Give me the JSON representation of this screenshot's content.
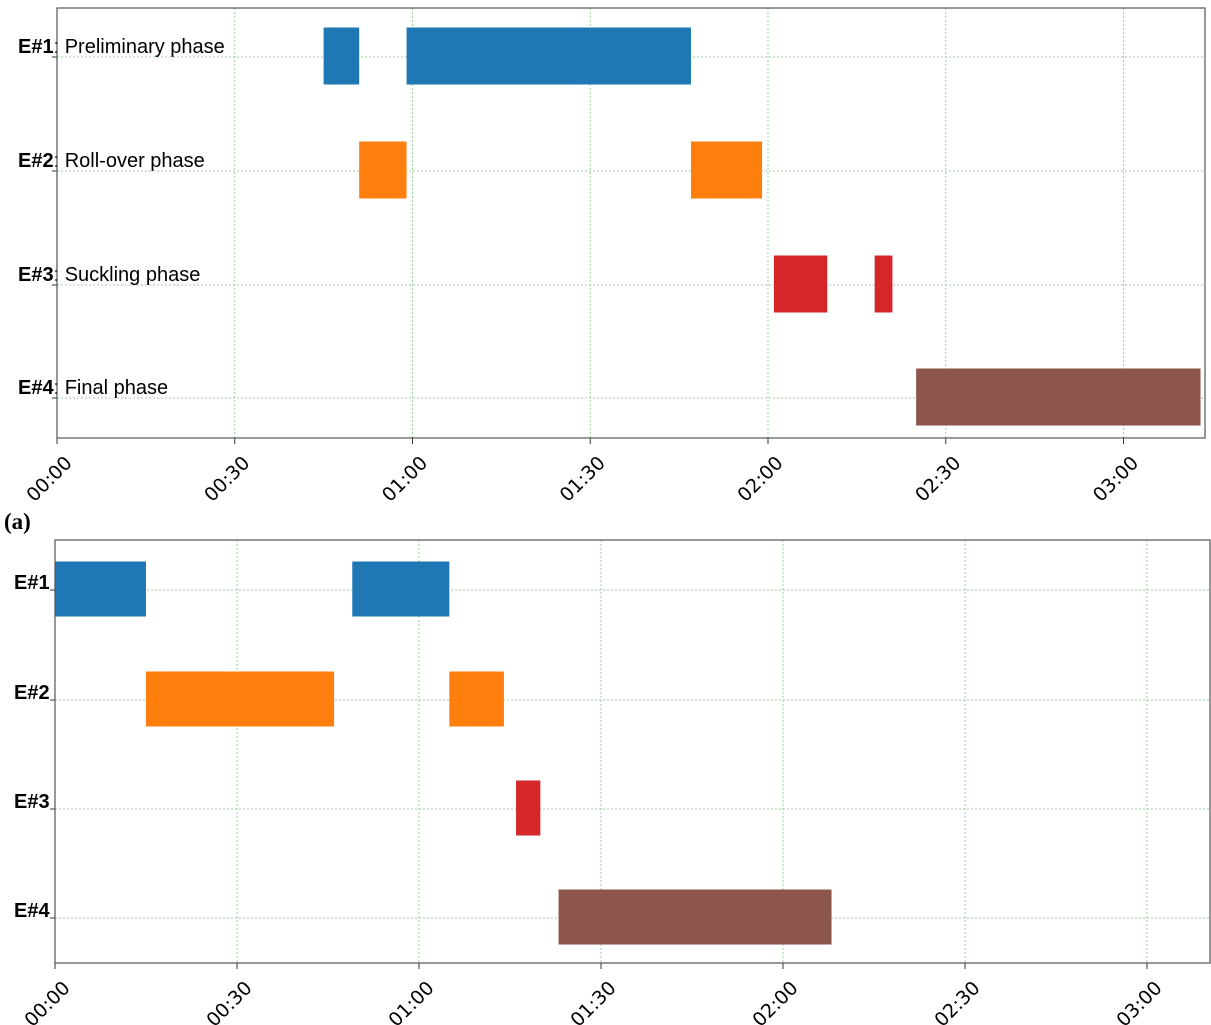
{
  "chart_data": [
    {
      "type": "gantt",
      "panel_label": "",
      "x_ticks": [
        "00:00",
        "00:30",
        "01:00",
        "01:30",
        "02:00",
        "02:30",
        "03:00"
      ],
      "xlim": [
        "00:00",
        "03:13"
      ],
      "grid": true,
      "rows": [
        {
          "label_bold": "E#1",
          "label_rest": ": Preliminary phase",
          "color": "#1f77b4",
          "segments": [
            {
              "start": "00:45",
              "end": "00:51"
            },
            {
              "start": "00:59",
              "end": "01:47"
            }
          ]
        },
        {
          "label_bold": "E#2",
          "label_rest": ": Roll-over phase",
          "color": "#ff7f0e",
          "segments": [
            {
              "start": "00:51",
              "end": "00:59"
            },
            {
              "start": "01:47",
              "end": "01:59"
            }
          ]
        },
        {
          "label_bold": "E#3",
          "label_rest": ": Suckling phase",
          "color": "#d62728",
          "segments": [
            {
              "start": "02:01",
              "end": "02:10"
            },
            {
              "start": "02:18",
              "end": "02:21"
            }
          ]
        },
        {
          "label_bold": "E#4",
          "label_rest": ": Final phase",
          "color": "#8c564b",
          "segments": [
            {
              "start": "02:25",
              "end": "03:13"
            }
          ]
        }
      ]
    },
    {
      "type": "gantt",
      "panel_label": "(a)",
      "x_ticks": [
        "00:00",
        "00:30",
        "01:00",
        "01:30",
        "02:00",
        "02:30",
        "03:00"
      ],
      "xlim": [
        "00:00",
        "03:10"
      ],
      "grid": true,
      "rows": [
        {
          "label_bold": "E#1",
          "label_rest": "",
          "color": "#1f77b4",
          "segments": [
            {
              "start": "00:00",
              "end": "00:15"
            },
            {
              "start": "00:49",
              "end": "01:05"
            }
          ]
        },
        {
          "label_bold": "E#2",
          "label_rest": "",
          "color": "#ff7f0e",
          "segments": [
            {
              "start": "00:15",
              "end": "00:46"
            },
            {
              "start": "01:05",
              "end": "01:14"
            }
          ]
        },
        {
          "label_bold": "E#3",
          "label_rest": "",
          "color": "#d62728",
          "segments": [
            {
              "start": "01:16",
              "end": "01:20"
            }
          ]
        },
        {
          "label_bold": "E#4",
          "label_rest": "",
          "color": "#8c564b",
          "segments": [
            {
              "start": "01:23",
              "end": "02:08"
            }
          ]
        }
      ]
    }
  ]
}
